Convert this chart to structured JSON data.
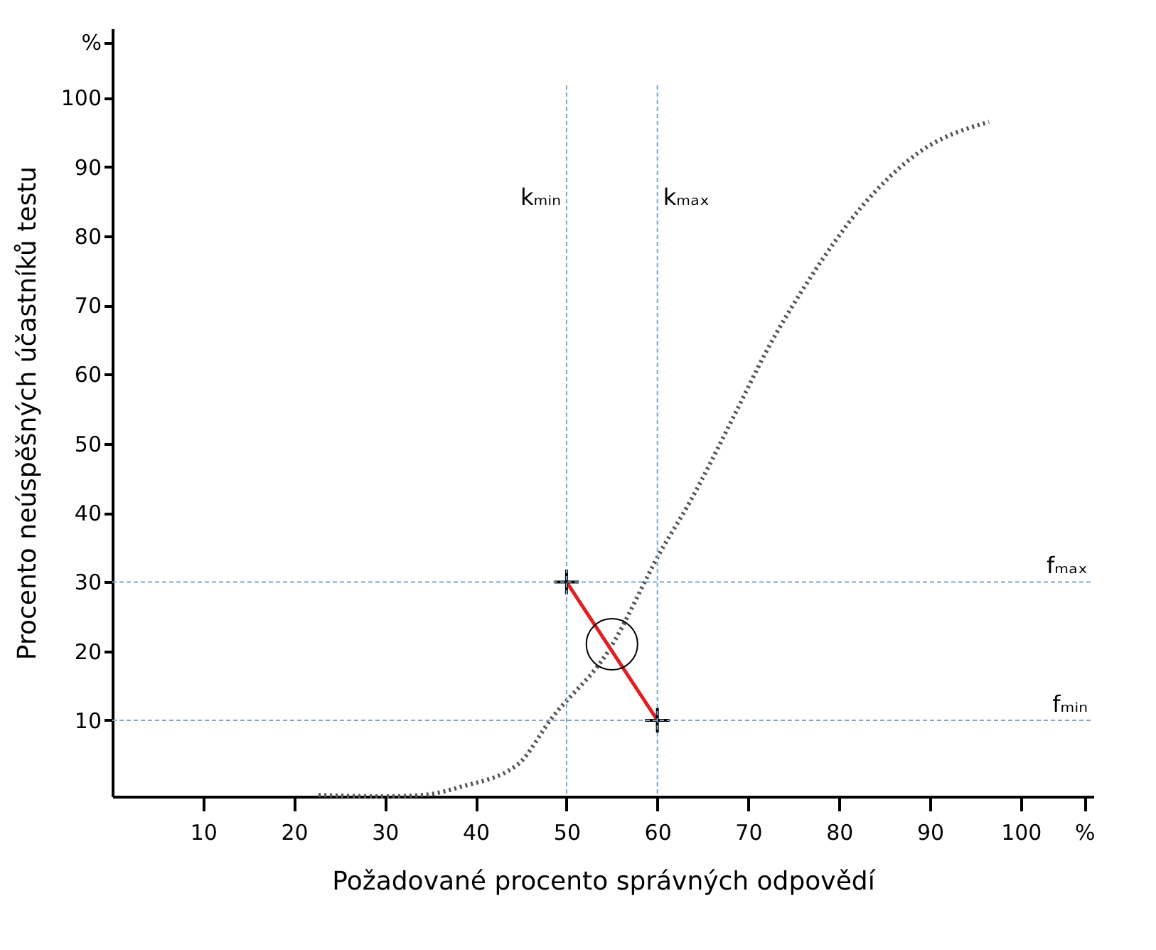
{
  "chart_data": {
    "type": "line",
    "xlabel": "Požadované procento správných odpovědí",
    "ylabel": "Procento neúspěšných účastníků testu",
    "xlim": [
      0,
      108
    ],
    "ylim": [
      -1,
      110
    ],
    "xticks": [
      10,
      20,
      30,
      40,
      50,
      60,
      70,
      80,
      90,
      100,
      {
        "value": 107,
        "label": "%"
      }
    ],
    "yticks": [
      10,
      20,
      30,
      40,
      50,
      60,
      70,
      80,
      90,
      100,
      {
        "value": 108,
        "label": "%"
      }
    ],
    "grid": false,
    "series": [
      {
        "color": "#555555",
        "line_style": "dotted",
        "marker": "none",
        "x": [
          22.7,
          30,
          34.2,
          38.4,
          44.7,
          48.3,
          54.6,
          60.4,
          63.5,
          68.7,
          71.9,
          77,
          82.4,
          88.7,
          96.5
        ],
        "values": [
          -0.8,
          -1,
          -0.8,
          0.4,
          3.7,
          10.2,
          20,
          34.5,
          41.4,
          54.7,
          63.1,
          74.3,
          84.1,
          92,
          96.5
        ]
      },
      {
        "color": "#e02020",
        "line_style": "solid",
        "marker": "none",
        "x": [
          50,
          60
        ],
        "values": [
          30,
          10
        ]
      },
      {
        "type": "scatter",
        "color": "#000000",
        "marker": "cross",
        "x": [
          50,
          60
        ],
        "values": [
          30,
          10
        ]
      },
      {
        "type": "scatter",
        "color": "#000000",
        "marker": "circle",
        "x": [
          55
        ],
        "values": [
          21
        ]
      }
    ],
    "ref_lines": [
      {
        "axis": "x",
        "value": 50,
        "label": "kₘᵢₙ",
        "color": "#7fa8d0",
        "line_style": "dashed"
      },
      {
        "axis": "x",
        "value": 60,
        "label": "kₘₐₓ",
        "color": "#7fa8d0",
        "line_style": "dashed"
      },
      {
        "axis": "y",
        "value": 30,
        "label": "fₘₐₓ",
        "color": "#7fa8d0",
        "line_style": "dashed"
      },
      {
        "axis": "y",
        "value": 10,
        "label": "fₘᵢₙ",
        "color": "#7fa8d0",
        "line_style": "dashed"
      }
    ]
  }
}
